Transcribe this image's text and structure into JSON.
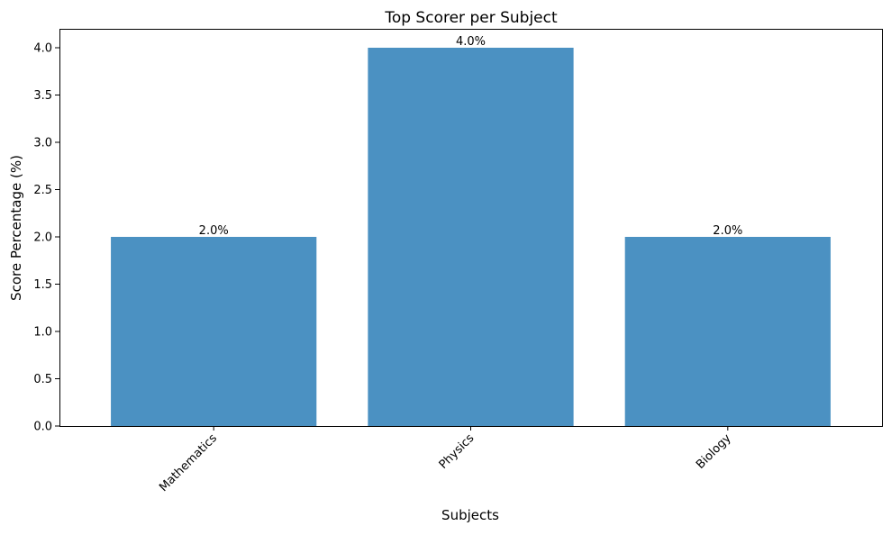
{
  "chart_data": {
    "type": "bar",
    "title": "Top Scorer per Subject",
    "xlabel": "Subjects",
    "ylabel": "Score Percentage (%)",
    "categories": [
      "Mathematics",
      "Physics",
      "Biology"
    ],
    "values": [
      2.0,
      4.0,
      2.0
    ],
    "data_labels": [
      "2.0%",
      "4.0%",
      "2.0%"
    ],
    "ylim": [
      0,
      4.2
    ],
    "yticks": [
      0.0,
      0.5,
      1.0,
      1.5,
      2.0,
      2.5,
      3.0,
      3.5,
      4.0
    ],
    "ytick_labels": [
      "0.0",
      "0.5",
      "1.0",
      "1.5",
      "2.0",
      "2.5",
      "3.0",
      "3.5",
      "4.0"
    ],
    "grid": false,
    "legend": "none",
    "bar_color": "#4b91c2"
  }
}
